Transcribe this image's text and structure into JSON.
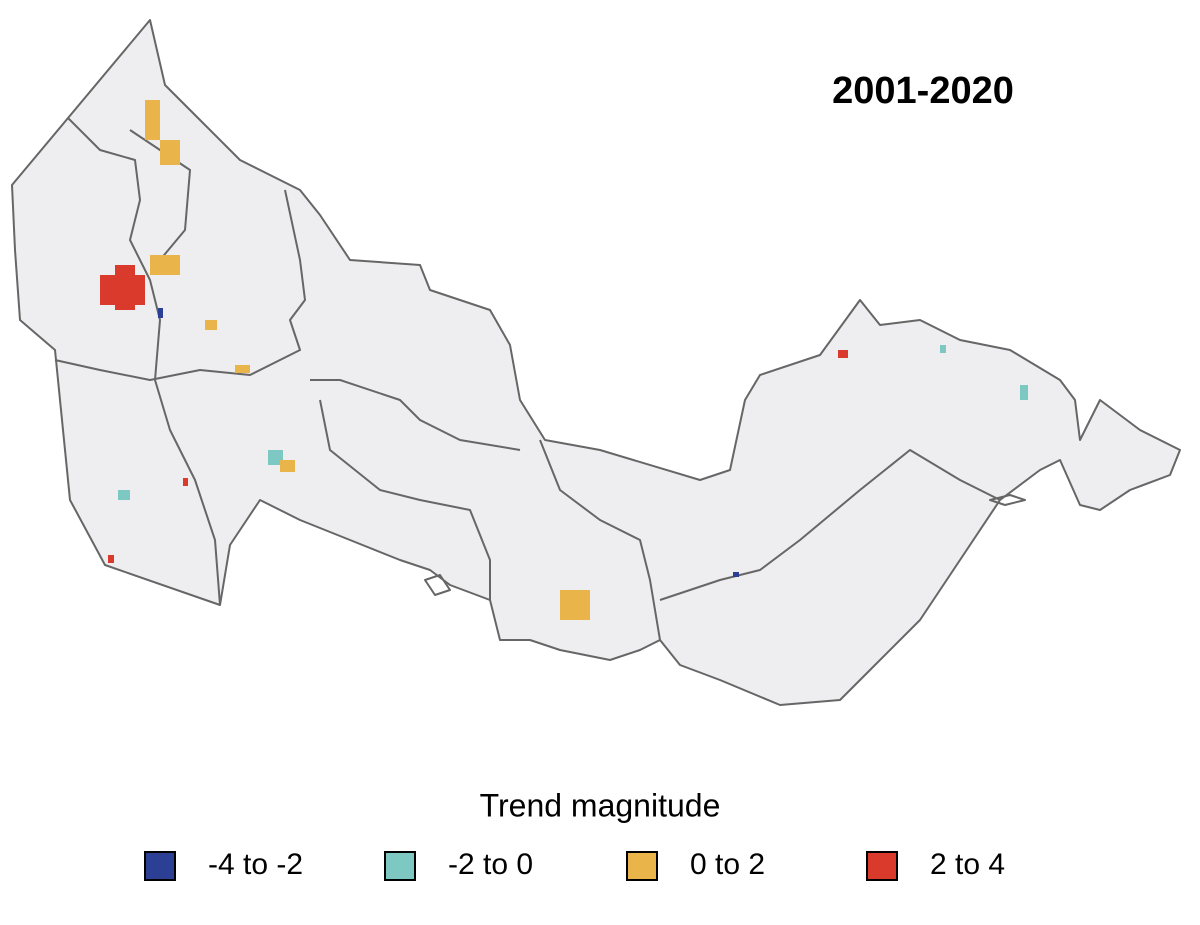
{
  "title": "2001-2020",
  "legend": {
    "title": "Trend magnitude",
    "items": [
      {
        "label": "-4 to -2",
        "color": "#2b3f94"
      },
      {
        "label": "-2 to 0",
        "color": "#7ec8c3"
      },
      {
        "label": "0 to 2",
        "color": "#e9b449"
      },
      {
        "label": "2 to 4",
        "color": "#d93a2b"
      }
    ]
  }
}
